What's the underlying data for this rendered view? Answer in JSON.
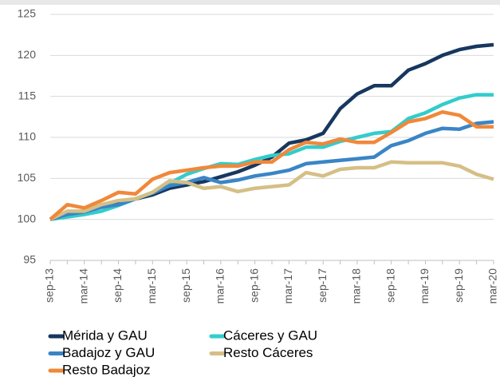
{
  "chart_data": {
    "type": "line",
    "categories": [
      "sep-13",
      null,
      "mar-14",
      null,
      "sep-14",
      null,
      "mar-15",
      null,
      "sep-15",
      null,
      "mar-16",
      null,
      "sep-16",
      null,
      "mar-17",
      null,
      "sep-17",
      null,
      "mar-18",
      null,
      "sep-18",
      null,
      "mar-19",
      null,
      "sep-19",
      null,
      "mar-20"
    ],
    "ylim": [
      95,
      125
    ],
    "yticks": [
      95,
      100,
      105,
      110,
      115,
      120,
      125
    ],
    "grid": true,
    "series": [
      {
        "name": "Mérida y GAU",
        "color": "#17375e",
        "values": [
          100,
          100.8,
          101,
          101.5,
          102,
          102.5,
          103,
          103.8,
          104.2,
          104.6,
          105.2,
          105.8,
          106.6,
          107.6,
          109.3,
          109.7,
          110.5,
          113.5,
          115.3,
          116.3,
          116.3,
          118.2,
          119,
          120,
          120.7,
          121.1,
          121.3
        ]
      },
      {
        "name": "Cáceres y GAU",
        "color": "#33cccc",
        "values": [
          100,
          100.3,
          100.6,
          101,
          101.7,
          102.5,
          103.3,
          104.4,
          105.5,
          106.2,
          106.8,
          106.7,
          107.3,
          107.8,
          108,
          108.8,
          108.8,
          109.5,
          110,
          110.5,
          110.7,
          112.3,
          113,
          114,
          114.8,
          115.2,
          115.2
        ]
      },
      {
        "name": "Badajoz y GAU",
        "color": "#3a85c6",
        "values": [
          100,
          100.6,
          100.9,
          101.5,
          101.8,
          102.5,
          103.2,
          104.1,
          104.5,
          105.1,
          104.5,
          104.8,
          105.3,
          105.6,
          106,
          106.8,
          107,
          107.2,
          107.4,
          107.6,
          109,
          109.6,
          110.5,
          111.1,
          111,
          111.7,
          111.9
        ]
      },
      {
        "name": "Resto Cáceres",
        "color": "#d5bf86",
        "values": [
          100,
          101,
          101,
          101.8,
          102.3,
          102.5,
          103.3,
          104.7,
          104.5,
          103.8,
          104,
          103.4,
          103.8,
          104,
          104.2,
          105.7,
          105.3,
          106.1,
          106.3,
          106.3,
          107,
          106.9,
          106.9,
          106.9,
          106.5,
          105.5,
          104.9
        ]
      },
      {
        "name": "Resto Badajoz",
        "color": "#f0883a",
        "values": [
          100,
          101.8,
          101.4,
          102.3,
          103.3,
          103.1,
          104.9,
          105.7,
          106,
          106.3,
          106.5,
          106.5,
          107,
          107,
          108.5,
          109.4,
          109.2,
          109.8,
          109.4,
          109.4,
          110.6,
          111.9,
          112.3,
          113.1,
          112.7,
          111.3,
          111.3
        ]
      }
    ]
  }
}
